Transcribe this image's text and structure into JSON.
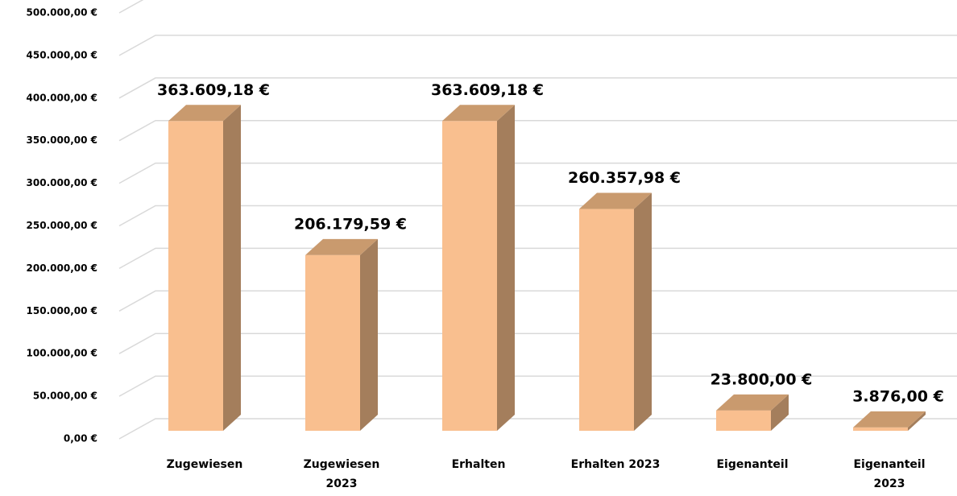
{
  "chart_data": {
    "type": "bar3d",
    "categories": [
      "Zugewiesen",
      "Zugewiesen 2023",
      "Erhalten",
      "Erhalten 2023",
      "Eigenanteil",
      "Eigenanteil 2023"
    ],
    "values": [
      363609.18,
      206179.59,
      363609.18,
      260357.98,
      23800.0,
      3876.0
    ],
    "value_labels": [
      "363.609,18 €",
      "206.179,59 €",
      "363.609,18 €",
      "260.357,98 €",
      "23.800,00 €",
      "3.876,00 €"
    ],
    "color": "#f9bf8f",
    "ylim": [
      0,
      500000
    ],
    "yticks": [
      {
        "value": 0,
        "label": "0,00 €"
      },
      {
        "value": 50000,
        "label": "50.000,00 €"
      },
      {
        "value": 100000,
        "label": "100.000,00 €"
      },
      {
        "value": 150000,
        "label": "150.000,00 €"
      },
      {
        "value": 200000,
        "label": "200.000,00 €"
      },
      {
        "value": 250000,
        "label": "250.000,00 €"
      },
      {
        "value": 300000,
        "label": "300.000,00 €"
      },
      {
        "value": 350000,
        "label": "350.000,00 €"
      },
      {
        "value": 400000,
        "label": "400.000,00 €"
      },
      {
        "value": 450000,
        "label": "450.000,00 €"
      },
      {
        "value": 500000,
        "label": "500.000,00 €"
      }
    ],
    "grid": true
  }
}
